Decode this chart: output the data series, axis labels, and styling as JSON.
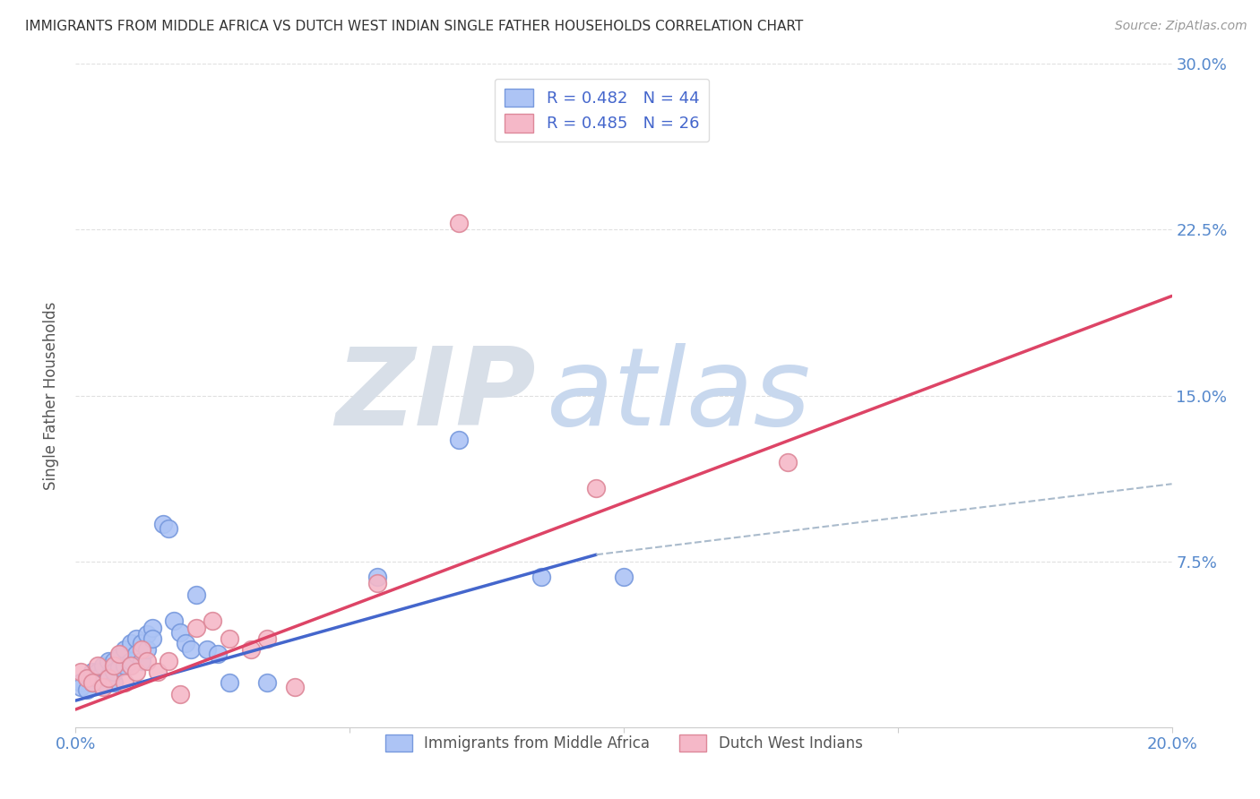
{
  "title": "IMMIGRANTS FROM MIDDLE AFRICA VS DUTCH WEST INDIAN SINGLE FATHER HOUSEHOLDS CORRELATION CHART",
  "source": "Source: ZipAtlas.com",
  "ylabel": "Single Father Households",
  "xlim": [
    0.0,
    0.2
  ],
  "ylim": [
    0.0,
    0.3
  ],
  "xticks": [
    0.0,
    0.05,
    0.1,
    0.15,
    0.2
  ],
  "xtick_labels": [
    "0.0%",
    "",
    "",
    "",
    "20.0%"
  ],
  "yticks": [
    0.075,
    0.15,
    0.225,
    0.3
  ],
  "ytick_labels": [
    "7.5%",
    "15.0%",
    "22.5%",
    "30.0%"
  ],
  "legend2_labels": [
    "Immigrants from Middle Africa",
    "Dutch West Indians"
  ],
  "blue_scatter_x": [
    0.001,
    0.001,
    0.002,
    0.002,
    0.003,
    0.003,
    0.004,
    0.004,
    0.005,
    0.005,
    0.006,
    0.006,
    0.007,
    0.007,
    0.007,
    0.008,
    0.008,
    0.009,
    0.009,
    0.01,
    0.01,
    0.011,
    0.011,
    0.012,
    0.012,
    0.013,
    0.013,
    0.014,
    0.014,
    0.016,
    0.017,
    0.018,
    0.019,
    0.02,
    0.021,
    0.022,
    0.024,
    0.026,
    0.028,
    0.035,
    0.055,
    0.07,
    0.085,
    0.1
  ],
  "blue_scatter_y": [
    0.02,
    0.018,
    0.022,
    0.017,
    0.025,
    0.02,
    0.025,
    0.022,
    0.028,
    0.02,
    0.03,
    0.023,
    0.03,
    0.02,
    0.025,
    0.032,
    0.027,
    0.035,
    0.028,
    0.038,
    0.03,
    0.04,
    0.033,
    0.038,
    0.03,
    0.042,
    0.035,
    0.045,
    0.04,
    0.092,
    0.09,
    0.048,
    0.043,
    0.038,
    0.035,
    0.06,
    0.035,
    0.033,
    0.02,
    0.02,
    0.068,
    0.13,
    0.068,
    0.068
  ],
  "pink_scatter_x": [
    0.001,
    0.002,
    0.003,
    0.004,
    0.005,
    0.006,
    0.007,
    0.008,
    0.009,
    0.01,
    0.011,
    0.012,
    0.013,
    0.015,
    0.017,
    0.019,
    0.022,
    0.025,
    0.028,
    0.032,
    0.035,
    0.04,
    0.055,
    0.07,
    0.095,
    0.13
  ],
  "pink_scatter_y": [
    0.025,
    0.022,
    0.02,
    0.028,
    0.018,
    0.022,
    0.028,
    0.033,
    0.02,
    0.028,
    0.025,
    0.035,
    0.03,
    0.025,
    0.03,
    0.015,
    0.045,
    0.048,
    0.04,
    0.035,
    0.04,
    0.018,
    0.065,
    0.228,
    0.108,
    0.12
  ],
  "blue_line_x": [
    0.0,
    0.095
  ],
  "blue_line_y": [
    0.012,
    0.078
  ],
  "pink_line_x": [
    0.0,
    0.2
  ],
  "pink_line_y": [
    0.008,
    0.195
  ],
  "dash_line_x": [
    0.095,
    0.2
  ],
  "dash_line_y": [
    0.078,
    0.11
  ],
  "watermark_zip": "ZIP",
  "watermark_atlas": "atlas",
  "watermark_zip_color": "#d8dfe8",
  "watermark_atlas_color": "#c8d8ee",
  "bg_color": "#ffffff",
  "grid_color": "#e0e0e0",
  "title_fontsize": 11,
  "tick_color": "#5588cc",
  "blue_line_color": "#4466cc",
  "pink_line_color": "#dd4466",
  "dash_color": "#aabbcc",
  "blue_scatter_face": "#adc4f5",
  "blue_scatter_edge": "#7799dd",
  "pink_scatter_face": "#f5b8c8",
  "pink_scatter_edge": "#dd8899"
}
